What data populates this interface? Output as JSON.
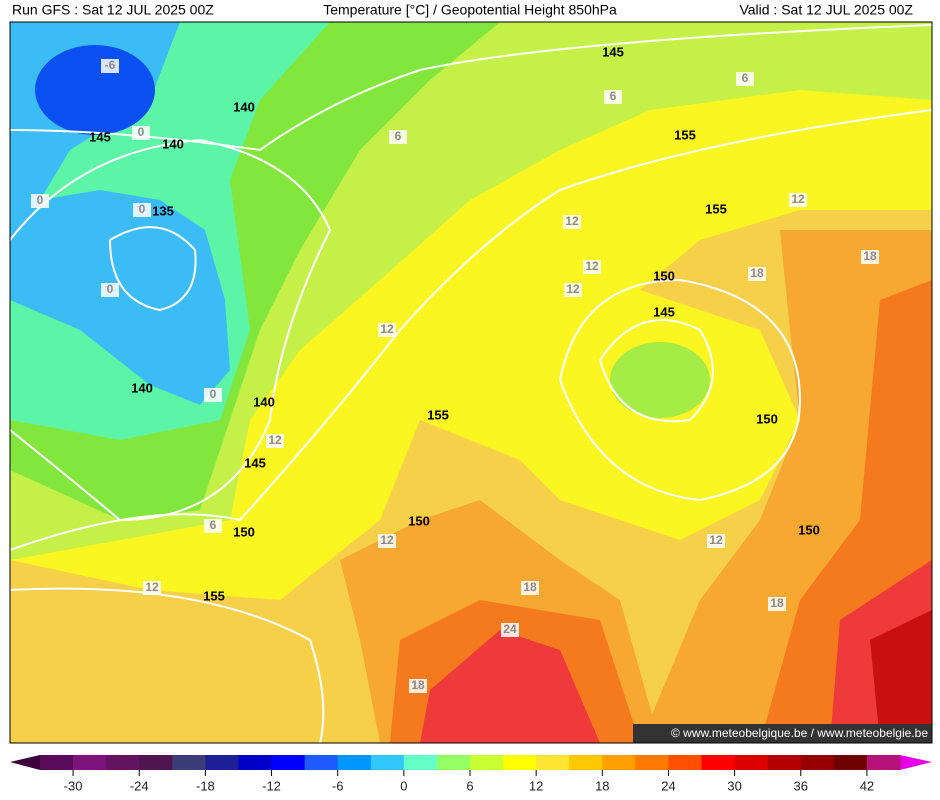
{
  "header": {
    "run": "Run GFS : Sat 12 JUL 2025 00Z",
    "title": "Temperature [°C] / Geopotential Height 850hPa",
    "valid": "Valid : Sat 12 JUL 2025 00Z"
  },
  "map": {
    "temperature_labels": [
      -6,
      0,
      0,
      0,
      0,
      0,
      6,
      6,
      6,
      6,
      12,
      12,
      12,
      12,
      12,
      12,
      12,
      12,
      12,
      18,
      18,
      18,
      18,
      18,
      24
    ],
    "height_labels": [
      145,
      140,
      145,
      140,
      135,
      155,
      155,
      150,
      145,
      140,
      140,
      155,
      150,
      145,
      150,
      150,
      150,
      155
    ],
    "credit": "© www.meteobelgique.be / www.meteobelgie.be"
  },
  "colorbar": {
    "range": [
      -33,
      45
    ],
    "ticks": [
      -30,
      -24,
      -18,
      -12,
      -6,
      0,
      6,
      12,
      18,
      24,
      30,
      36,
      42
    ],
    "colors": [
      "#5a0a5a",
      "#7d147d",
      "#64145f",
      "#501450",
      "#3c3c78",
      "#1e1e96",
      "#0000c8",
      "#0000ff",
      "#1e5aff",
      "#0096ff",
      "#32c8ff",
      "#64ffc8",
      "#96ff64",
      "#c8ff32",
      "#ffff00",
      "#ffe632",
      "#ffc800",
      "#ffa000",
      "#ff7800",
      "#ff5000",
      "#ff0000",
      "#dc0000",
      "#b40000",
      "#960000",
      "#6e0000",
      "#b4147a"
    ]
  }
}
